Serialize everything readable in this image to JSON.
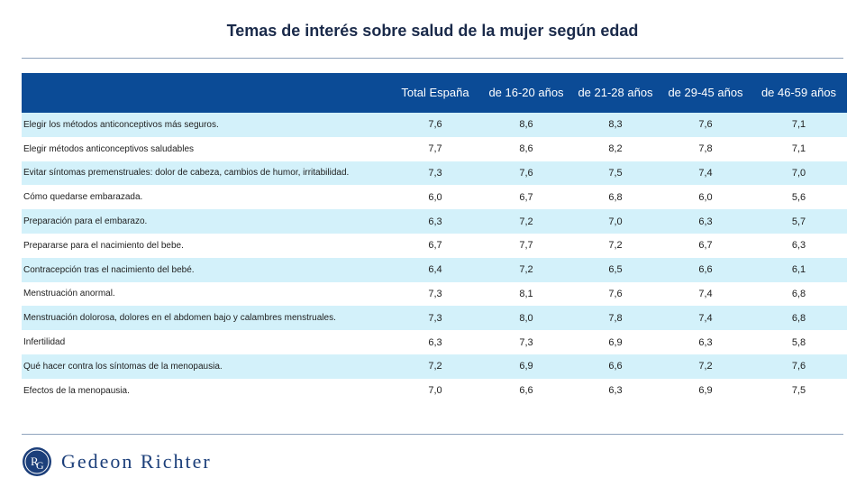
{
  "title": "Temas de interés sobre salud de la mujer según edad",
  "colors": {
    "header_bg": "#0b4b96",
    "row_alt": "#d3f1fa",
    "brand": "#1c3f7a"
  },
  "table": {
    "columns": [
      "Total España",
      "de 16-20 años",
      "de 21-28 años",
      "de 29-45 años",
      "de 46-59 años"
    ],
    "rows": [
      {
        "label": "Elegir los métodos anticonceptivos más seguros.",
        "values": [
          "7,6",
          "8,6",
          "8,3",
          "7,6",
          "7,1"
        ]
      },
      {
        "label": "Elegir métodos anticonceptivos saludables",
        "values": [
          "7,7",
          "8,6",
          "8,2",
          "7,8",
          "7,1"
        ]
      },
      {
        "label": "Evitar síntomas premenstruales: dolor de cabeza, cambios de humor, irritabilidad.",
        "values": [
          "7,3",
          "7,6",
          "7,5",
          "7,4",
          "7,0"
        ]
      },
      {
        "label": "Cómo quedarse embarazada.",
        "values": [
          "6,0",
          "6,7",
          "6,8",
          "6,0",
          "5,6"
        ]
      },
      {
        "label": "Preparación para el embarazo.",
        "values": [
          "6,3",
          "7,2",
          "7,0",
          "6,3",
          "5,7"
        ]
      },
      {
        "label": "Prepararse para el nacimiento del bebe.",
        "values": [
          "6,7",
          "7,7",
          "7,2",
          "6,7",
          "6,3"
        ]
      },
      {
        "label": "Contracepción tras el nacimiento del bebé.",
        "values": [
          "6,4",
          "7,2",
          "6,5",
          "6,6",
          "6,1"
        ]
      },
      {
        "label": "Menstruación anormal.",
        "values": [
          "7,3",
          "8,1",
          "7,6",
          "7,4",
          "6,8"
        ]
      },
      {
        "label": "Menstruación dolorosa, dolores en el abdomen bajo y calambres menstruales.",
        "values": [
          "7,3",
          "8,0",
          "7,8",
          "7,4",
          "6,8"
        ]
      },
      {
        "label": "Infertilidad",
        "values": [
          "6,3",
          "7,3",
          "6,9",
          "6,3",
          "5,8"
        ]
      },
      {
        "label": "Qué hacer contra los síntomas de la menopausia.",
        "values": [
          "7,2",
          "6,9",
          "6,6",
          "7,2",
          "7,6"
        ]
      },
      {
        "label": "Efectos de la menopausia.",
        "values": [
          "7,0",
          "6,6",
          "6,3",
          "6,9",
          "7,5"
        ]
      }
    ]
  },
  "logo": {
    "icon": "gedeon-richter-emblem",
    "text": "Gedeon Richter"
  }
}
